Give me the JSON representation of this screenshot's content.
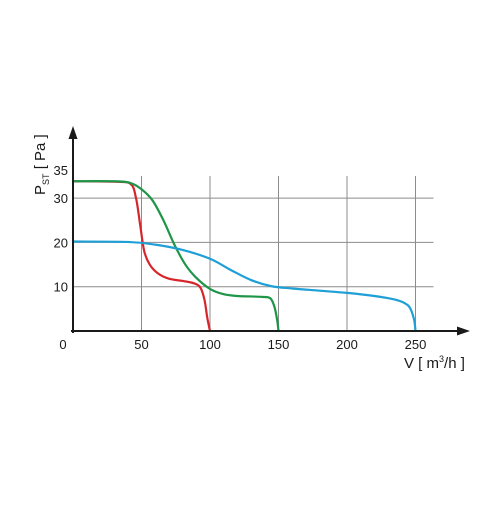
{
  "chart_data": {
    "type": "line",
    "xlabel": {
      "prefix": "V [ m",
      "sup": "3",
      "suffix": "/h ]"
    },
    "ylabel": {
      "main": "P",
      "sub": "ST",
      "suffix": " [ Pa ]"
    },
    "xlim": [
      0,
      280
    ],
    "ylim": [
      0,
      45
    ],
    "x_ticks": [
      0,
      50,
      100,
      150,
      200,
      250
    ],
    "x_tick_labels": [
      "0",
      "50",
      "100",
      "150",
      "200",
      "250"
    ],
    "y_ticks": [
      10,
      20,
      30,
      35
    ],
    "y_tick_labels": [
      "10",
      "20",
      "30",
      "35"
    ],
    "grid": true,
    "series": [
      {
        "color": "#d6262b",
        "x": [
          0,
          30,
          42,
          46,
          49,
          52,
          56,
          62,
          70,
          80,
          88,
          93,
          96,
          98,
          100
        ],
        "y": [
          33.8,
          33.7,
          33.2,
          30,
          24,
          18,
          15,
          13,
          11.8,
          11.3,
          10.8,
          9.8,
          7,
          3,
          0
        ]
      },
      {
        "color": "#1f9548",
        "x": [
          0,
          30,
          42,
          50,
          58,
          66,
          74,
          82,
          90,
          100,
          110,
          120,
          130,
          138,
          144,
          147,
          149,
          150
        ],
        "y": [
          33.8,
          33.8,
          33.4,
          32,
          29.5,
          25,
          19.5,
          15,
          12,
          9.5,
          8.3,
          7.9,
          7.8,
          7.7,
          7.4,
          5.5,
          2.5,
          0
        ]
      },
      {
        "color": "#1e9fd6",
        "x": [
          0,
          40,
          60,
          80,
          100,
          115,
          130,
          145,
          160,
          180,
          200,
          220,
          235,
          242,
          246,
          249,
          250
        ],
        "y": [
          20.2,
          20.1,
          19.5,
          18.3,
          16.3,
          13.8,
          11.5,
          10.1,
          9.6,
          9.1,
          8.6,
          7.9,
          7.1,
          6.3,
          5.2,
          2.5,
          0
        ]
      }
    ]
  }
}
